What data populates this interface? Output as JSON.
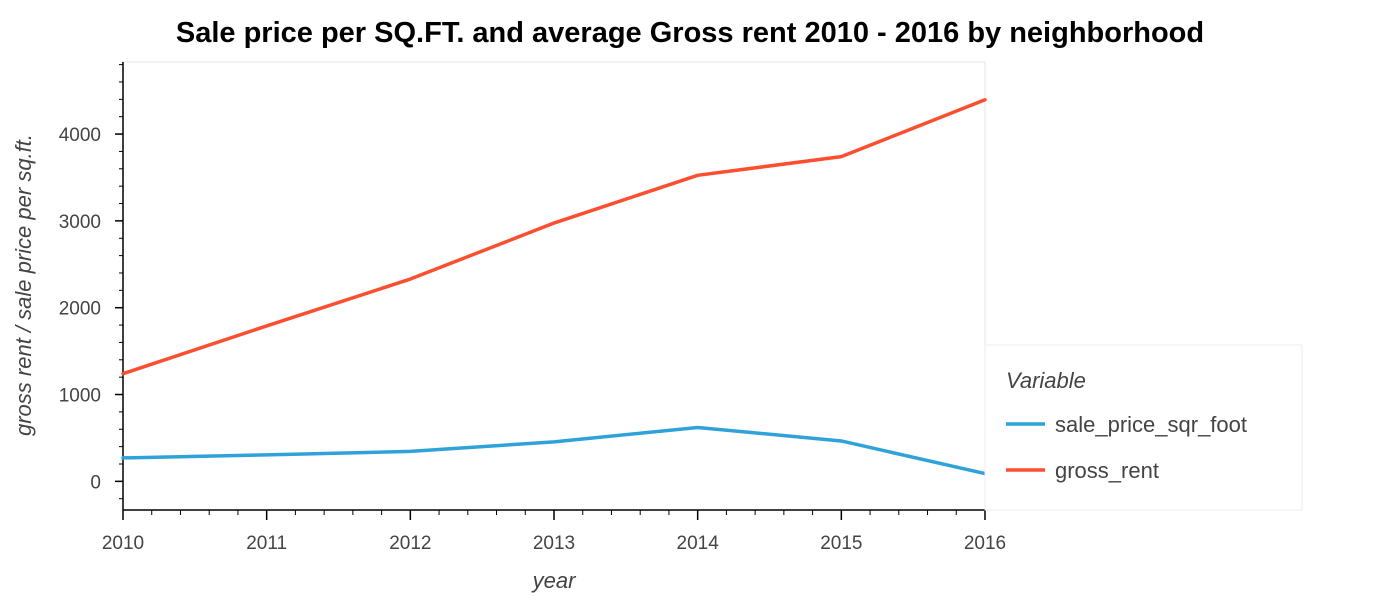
{
  "chart_data": {
    "type": "line",
    "title": "Sale price per SQ.FT. and average Gross rent 2010 - 2016 by neighborhood",
    "xlabel": "year",
    "ylabel": "gross rent / sale price per sq.ft.",
    "x": [
      2010,
      2011,
      2012,
      2013,
      2014,
      2015,
      2016
    ],
    "xlim": [
      2010,
      2016
    ],
    "ylim": [
      -330,
      4830
    ],
    "x_ticks": [
      "2010",
      "2011",
      "2012",
      "2013",
      "2014",
      "2015",
      "2016"
    ],
    "y_ticks": [
      "0",
      "1000",
      "2000",
      "3000",
      "4000"
    ],
    "grid": false,
    "legend_title": "Variable",
    "legend_position": "right",
    "series": [
      {
        "name": "sale_price_sqr_foot",
        "color": "#30a2da",
        "values": [
          270,
          305,
          345,
          455,
          620,
          465,
          90
        ]
      },
      {
        "name": "gross_rent",
        "color": "#fc4f30",
        "values": [
          1240,
          1790,
          2330,
          2975,
          3525,
          3740,
          4395
        ]
      }
    ]
  }
}
